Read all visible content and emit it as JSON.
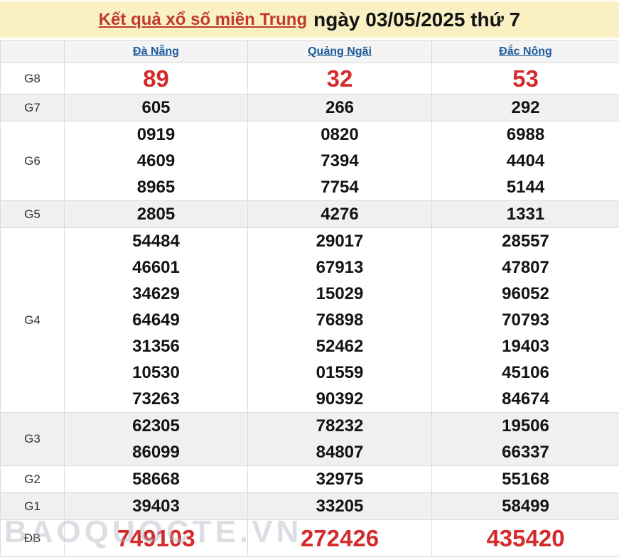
{
  "header": {
    "title_link": "Kết quả xổ số miền Trung",
    "title_date": "ngày 03/05/2025 thứ 7"
  },
  "table": {
    "columns": [
      "Đà Nẵng",
      "Quảng Ngãi",
      "Đắc Nông"
    ],
    "rows": [
      {
        "label": "G8",
        "style": "big",
        "shade": false,
        "cells": [
          [
            "89"
          ],
          [
            "32"
          ],
          [
            "53"
          ]
        ]
      },
      {
        "label": "G7",
        "style": "normal",
        "shade": true,
        "cells": [
          [
            "605"
          ],
          [
            "266"
          ],
          [
            "292"
          ]
        ]
      },
      {
        "label": "G6",
        "style": "normal",
        "shade": false,
        "cells": [
          [
            "0919",
            "4609",
            "8965"
          ],
          [
            "0820",
            "7394",
            "7754"
          ],
          [
            "6988",
            "4404",
            "5144"
          ]
        ]
      },
      {
        "label": "G5",
        "style": "normal",
        "shade": true,
        "cells": [
          [
            "2805"
          ],
          [
            "4276"
          ],
          [
            "1331"
          ]
        ]
      },
      {
        "label": "G4",
        "style": "normal",
        "shade": false,
        "cells": [
          [
            "54484",
            "46601",
            "34629",
            "64649",
            "31356",
            "10530",
            "73263"
          ],
          [
            "29017",
            "67913",
            "15029",
            "76898",
            "52462",
            "01559",
            "90392"
          ],
          [
            "28557",
            "47807",
            "96052",
            "70793",
            "19403",
            "45106",
            "84674"
          ]
        ]
      },
      {
        "label": "G3",
        "style": "normal",
        "shade": true,
        "cells": [
          [
            "62305",
            "86099"
          ],
          [
            "78232",
            "84807"
          ],
          [
            "19506",
            "66337"
          ]
        ]
      },
      {
        "label": "G2",
        "style": "normal",
        "shade": false,
        "cells": [
          [
            "58668"
          ],
          [
            "32975"
          ],
          [
            "55168"
          ]
        ]
      },
      {
        "label": "G1",
        "style": "normal",
        "shade": true,
        "cells": [
          [
            "39403"
          ],
          [
            "33205"
          ],
          [
            "58499"
          ]
        ]
      },
      {
        "label": "ĐB",
        "style": "jackpot",
        "shade": false,
        "cells": [
          [
            "749103"
          ],
          [
            "272426"
          ],
          [
            "435420"
          ]
        ]
      }
    ]
  },
  "watermark": "BAOQUOCTE.VN",
  "colors": {
    "banner_bg": "#f9f0c4",
    "title_link_red": "#c0392b",
    "number_red": "#d32b2b",
    "province_blue": "#1d5d9b",
    "stripe_gray": "#f0f0f0",
    "border_gray": "#dcdcdc"
  }
}
